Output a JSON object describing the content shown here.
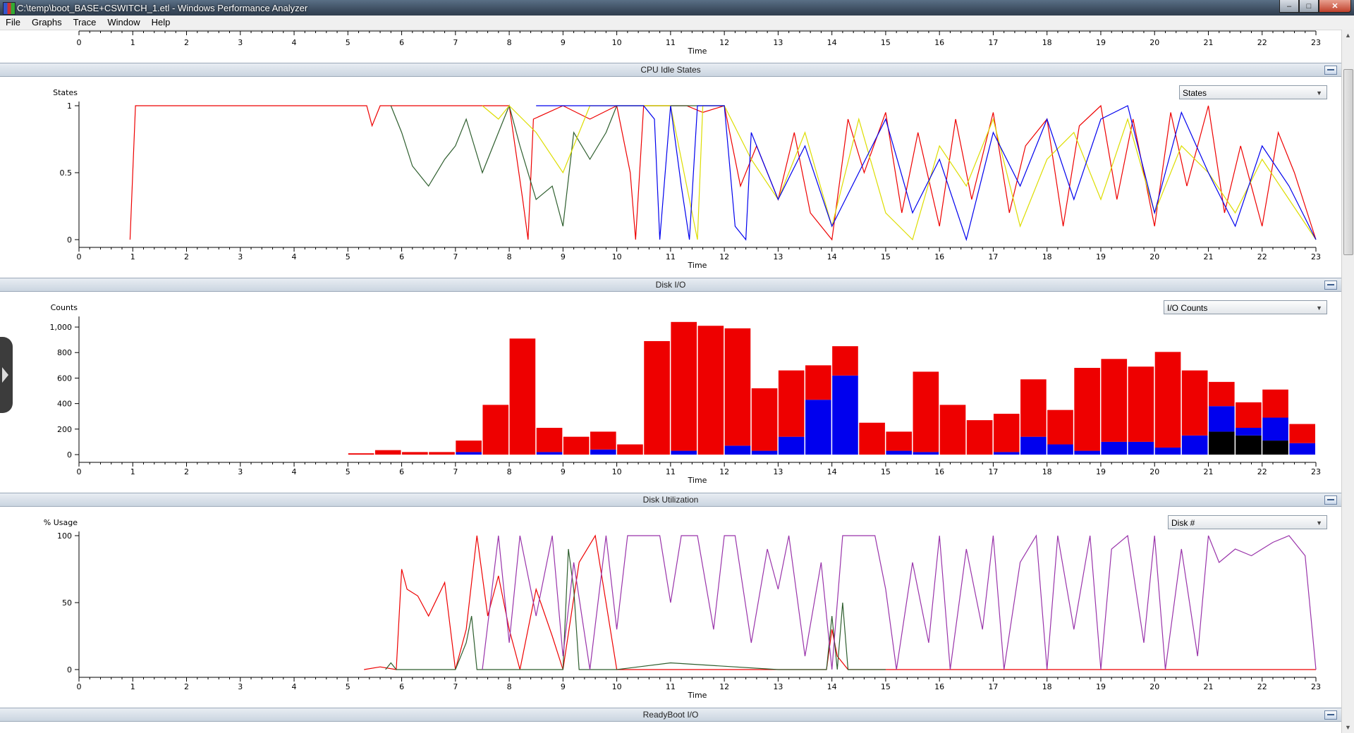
{
  "window": {
    "title": "C:\\temp\\boot_BASE+CSWITCH_1.etl - Windows Performance Analyzer",
    "controls": {
      "minimize": "–",
      "maximize": "□",
      "close": "✕"
    }
  },
  "menu": [
    {
      "label": "File",
      "accel": "F"
    },
    {
      "label": "Graphs",
      "accel": "G"
    },
    {
      "label": "Trace",
      "accel": "T"
    },
    {
      "label": "Window",
      "accel": "W"
    },
    {
      "label": "Help",
      "accel": "H"
    }
  ],
  "axis": {
    "ticks": [
      0,
      1,
      2,
      3,
      4,
      5,
      6,
      7,
      8,
      9,
      10,
      11,
      12,
      13,
      14,
      15,
      16,
      17,
      18,
      19,
      20,
      21,
      22,
      23
    ],
    "label": "Time",
    "range": [
      0,
      23
    ]
  },
  "panes": [
    {
      "id": "cpu-idle",
      "title": "CPU Idle States",
      "selector": "States",
      "ylabel": "States"
    },
    {
      "id": "disk-io",
      "title": "Disk I/O",
      "selector": "I/O Counts",
      "ylabel": "Counts"
    },
    {
      "id": "disk-util",
      "title": "Disk Utilization",
      "selector": "Disk #",
      "ylabel": "% Usage"
    },
    {
      "id": "readyboot",
      "title": "ReadyBoot I/O"
    }
  ],
  "colors": {
    "red": "#ee0000",
    "blue": "#0000ee",
    "green": "#2e5e2e",
    "yellow": "#dddd00",
    "purple": "#9933aa",
    "black": "#000000"
  },
  "chart_data": [
    {
      "type": "line",
      "title": "CPU Idle States",
      "ylabel": "States",
      "xlabel": "Time",
      "xlim": [
        0,
        23
      ],
      "ylim": [
        0,
        1
      ],
      "yticks": [
        "0",
        "0.5",
        "1"
      ],
      "series": [
        {
          "color": "#ee0000",
          "x": [
            0.95,
            1.05,
            2,
            3,
            4,
            5,
            5.35,
            5.45,
            5.6,
            6,
            7,
            7.5,
            8,
            8.25,
            8.35,
            8.45,
            9,
            9.5,
            10,
            10.25,
            10.35,
            10.5,
            10.65,
            11,
            11.3,
            11.6,
            12,
            12.3,
            12.6,
            13,
            13.3,
            13.6,
            14,
            14.3,
            14.6,
            15,
            15.3,
            15.6,
            16,
            16.3,
            16.6,
            17,
            17.3,
            17.6,
            18,
            18.3,
            18.6,
            19,
            19.3,
            19.6,
            20,
            20.3,
            20.6,
            21,
            21.3,
            21.6,
            22,
            22.3,
            22.6,
            23
          ],
          "y": [
            0,
            1,
            1,
            1,
            1,
            1,
            1,
            0.85,
            1,
            1,
            1,
            1,
            1,
            0.3,
            0,
            0.9,
            1,
            0.9,
            1,
            0.5,
            0,
            1,
            1,
            1,
            1,
            0.95,
            1,
            0.4,
            0.7,
            0.3,
            0.8,
            0.2,
            0,
            0.9,
            0.5,
            0.95,
            0.2,
            0.8,
            0.1,
            0.9,
            0.3,
            0.95,
            0.2,
            0.7,
            0.9,
            0.1,
            0.85,
            1,
            0.3,
            0.9,
            0.1,
            0.95,
            0.4,
            1,
            0.2,
            0.7,
            0.1,
            0.8,
            0.5,
            0
          ]
        },
        {
          "color": "#2e5e2e",
          "x": [
            5.8,
            6,
            6.2,
            6.5,
            6.8,
            7,
            7.2,
            7.5,
            7.8,
            8,
            8.2,
            8.5,
            8.8,
            9,
            9.2,
            9.5,
            9.8,
            10,
            11,
            12
          ],
          "y": [
            1,
            0.8,
            0.55,
            0.4,
            0.6,
            0.7,
            0.9,
            0.5,
            0.8,
            1,
            0.7,
            0.3,
            0.4,
            0.1,
            0.8,
            0.6,
            0.8,
            1,
            1,
            1
          ]
        },
        {
          "color": "#dddd00",
          "x": [
            7.5,
            7.8,
            8,
            8.5,
            9,
            9.5,
            10,
            11,
            11.4,
            11.5,
            11.6,
            12,
            12.5,
            13,
            13.5,
            14,
            14.5,
            15,
            15.5,
            16,
            16.5,
            17,
            17.5,
            18,
            18.5,
            19,
            19.5,
            20,
            20.5,
            21,
            21.5,
            22,
            22.5,
            23
          ],
          "y": [
            1,
            0.9,
            1,
            0.8,
            0.5,
            1,
            1,
            1,
            0.2,
            0,
            1,
            1,
            0.6,
            0.3,
            0.8,
            0.1,
            0.9,
            0.2,
            0,
            0.7,
            0.4,
            0.9,
            0.1,
            0.6,
            0.8,
            0.3,
            0.9,
            0.2,
            0.7,
            0.5,
            0.2,
            0.6,
            0.3,
            0
          ]
        },
        {
          "color": "#0000ee",
          "x": [
            8.5,
            9,
            10,
            10.5,
            10.7,
            10.8,
            11,
            11.2,
            11.35,
            11.5,
            11.7,
            12,
            12.2,
            12.4,
            12.5,
            13,
            13.5,
            14,
            14.5,
            15,
            15.5,
            16,
            16.5,
            17,
            17.5,
            18,
            18.5,
            19,
            19.5,
            20,
            20.5,
            21,
            21.5,
            22,
            22.5,
            23
          ],
          "y": [
            1,
            1,
            1,
            1,
            0.9,
            0,
            1,
            0.4,
            0,
            1,
            1,
            1,
            0.1,
            0,
            0.8,
            0.3,
            0.7,
            0.1,
            0.5,
            0.9,
            0.2,
            0.6,
            0,
            0.8,
            0.4,
            0.9,
            0.3,
            0.9,
            1,
            0.2,
            0.95,
            0.5,
            0.1,
            0.7,
            0.4,
            0
          ]
        }
      ]
    },
    {
      "type": "bar",
      "stacked": true,
      "title": "Disk I/O",
      "ylabel": "Counts",
      "xlabel": "Time",
      "xlim": [
        0,
        23
      ],
      "ylim": [
        0,
        1050
      ],
      "yticks": [
        "0",
        "200",
        "400",
        "600",
        "800",
        "1,000"
      ],
      "x": [
        5,
        5.5,
        6,
        6.5,
        7,
        7.5,
        8,
        8.5,
        9,
        9.5,
        10,
        10.5,
        11,
        11.5,
        12,
        12.5,
        13,
        13.5,
        14,
        14.5,
        15,
        15.5,
        16,
        16.5,
        17,
        17.5,
        18,
        18.5,
        19,
        19.5,
        20,
        20.5,
        21,
        21.5,
        22,
        22.5
      ],
      "series": [
        {
          "color": "#000000",
          "values": [
            0,
            0,
            0,
            0,
            0,
            0,
            0,
            0,
            0,
            0,
            0,
            0,
            0,
            0,
            0,
            0,
            0,
            0,
            0,
            0,
            0,
            0,
            0,
            0,
            0,
            0,
            0,
            0,
            0,
            0,
            0,
            0,
            180,
            150,
            110,
            0
          ]
        },
        {
          "color": "#0000ee",
          "values": [
            0,
            0,
            0,
            0,
            20,
            0,
            0,
            20,
            0,
            40,
            0,
            0,
            30,
            0,
            70,
            30,
            140,
            430,
            620,
            0,
            30,
            20,
            0,
            0,
            20,
            140,
            80,
            30,
            100,
            100,
            55,
            150,
            200,
            60,
            180,
            90
          ]
        },
        {
          "color": "#ee0000",
          "values": [
            10,
            35,
            20,
            20,
            90,
            390,
            910,
            190,
            140,
            140,
            80,
            890,
            1010,
            1010,
            920,
            490,
            520,
            270,
            230,
            250,
            150,
            630,
            390,
            270,
            300,
            450,
            270,
            650,
            650,
            590,
            750,
            510,
            190,
            200,
            220,
            150
          ]
        }
      ]
    },
    {
      "type": "line",
      "title": "Disk Utilization",
      "ylabel": "% Usage",
      "xlabel": "Time",
      "xlim": [
        0,
        23
      ],
      "ylim": [
        0,
        100
      ],
      "yticks": [
        "0",
        "50",
        "100"
      ],
      "series": [
        {
          "color": "#ee0000",
          "x": [
            5.3,
            5.6,
            5.9,
            6,
            6.1,
            6.3,
            6.5,
            6.8,
            7,
            7.2,
            7.4,
            7.6,
            7.8,
            8,
            8.2,
            8.5,
            8.8,
            9,
            9.3,
            9.6,
            10,
            11,
            12,
            13,
            13.9,
            14,
            14.1,
            14.3,
            15,
            16,
            17,
            18,
            19,
            20,
            21,
            22,
            23
          ],
          "y": [
            0,
            2,
            0,
            75,
            60,
            55,
            40,
            65,
            0,
            30,
            100,
            40,
            70,
            30,
            0,
            60,
            25,
            0,
            80,
            100,
            0,
            0,
            0,
            0,
            0,
            30,
            10,
            0,
            0,
            0,
            0,
            0,
            0,
            0,
            0,
            0,
            0
          ]
        },
        {
          "color": "#2e5e2e",
          "x": [
            5.7,
            5.8,
            5.9,
            7,
            7.2,
            7.3,
            7.4,
            8,
            9,
            9.1,
            9.2,
            9.3,
            10,
            11,
            13,
            13.9,
            14,
            14.1,
            14.2,
            14.3,
            15
          ],
          "y": [
            0,
            5,
            0,
            0,
            20,
            40,
            0,
            0,
            0,
            90,
            60,
            0,
            0,
            5,
            0,
            0,
            40,
            0,
            50,
            0,
            0
          ]
        },
        {
          "color": "#9933aa",
          "x": [
            7.5,
            7.8,
            8,
            8.2,
            8.5,
            8.8,
            9,
            9.2,
            9.5,
            9.8,
            10,
            10.2,
            10.5,
            10.8,
            11,
            11.2,
            11.5,
            11.8,
            12,
            12.2,
            12.5,
            12.8,
            13,
            13.2,
            13.5,
            13.8,
            14,
            14.2,
            14.5,
            14.8,
            15,
            15.2,
            15.5,
            15.8,
            16,
            16.2,
            16.5,
            16.8,
            17,
            17.2,
            17.5,
            17.8,
            18,
            18.2,
            18.5,
            18.8,
            19,
            19.2,
            19.5,
            19.8,
            20,
            20.2,
            20.5,
            20.8,
            21,
            21.2,
            21.5,
            21.8,
            22,
            22.2,
            22.5,
            22.8,
            23
          ],
          "y": [
            0,
            100,
            20,
            100,
            40,
            100,
            10,
            80,
            0,
            100,
            30,
            100,
            100,
            100,
            50,
            100,
            100,
            30,
            100,
            100,
            20,
            90,
            60,
            100,
            10,
            80,
            0,
            100,
            100,
            100,
            60,
            0,
            80,
            20,
            100,
            0,
            90,
            30,
            100,
            0,
            80,
            100,
            0,
            100,
            30,
            100,
            0,
            90,
            100,
            20,
            100,
            0,
            90,
            10,
            100,
            80,
            90,
            85,
            90,
            95,
            100,
            85,
            0
          ]
        }
      ]
    }
  ]
}
